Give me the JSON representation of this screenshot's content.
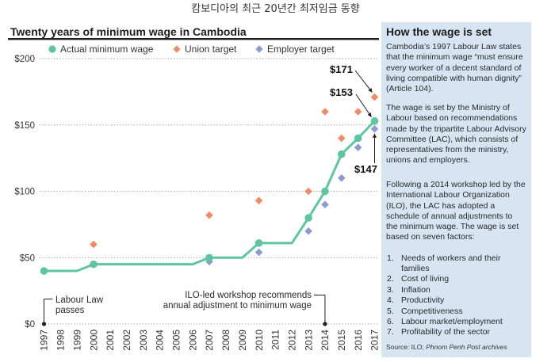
{
  "caption": "캄보디아의 최근 20년간 최저임금 동향",
  "colors": {
    "panel_bg": "#d6e5f1",
    "ink": "#1e1e1e",
    "grid": "#9a9a9a"
  },
  "chart_data": {
    "type": "line",
    "title": "Twenty years of minimum wage in Cambodia",
    "xlabel": "",
    "ylabel": "",
    "x": [
      1997,
      1998,
      1999,
      2000,
      2001,
      2002,
      2003,
      2004,
      2005,
      2006,
      2007,
      2008,
      2009,
      2010,
      2011,
      2012,
      2013,
      2014,
      2015,
      2016,
      2017
    ],
    "x_tick_labels": [
      "1997",
      "1998",
      "1999",
      "2000",
      "2001",
      "2002",
      "2003",
      "2004",
      "2005",
      "2006",
      "2007",
      "2008",
      "2009",
      "2010",
      "2011",
      "2012",
      "2013",
      "2014",
      "2015",
      "2016",
      "2017"
    ],
    "ylim": [
      0,
      200
    ],
    "y_ticks": [
      0,
      50,
      100,
      150,
      200
    ],
    "y_tick_labels": [
      "$0",
      "$50",
      "$100",
      "$150",
      "$200"
    ],
    "grid": true,
    "legend": {
      "position": "top"
    },
    "series": [
      {
        "name": "Actual minimum wage",
        "marker": "circle",
        "color": "#5dc6a1",
        "values": [
          40,
          40,
          40,
          45,
          45,
          45,
          45,
          45,
          45,
          45,
          50,
          50,
          50,
          61,
          61,
          61,
          80,
          100,
          128,
          140,
          153
        ],
        "marked_years": [
          1997,
          2000,
          2007,
          2010,
          2013,
          2014,
          2015,
          2016,
          2017
        ]
      },
      {
        "name": "Union target",
        "marker": "diamond",
        "color": "#f08c63",
        "points": [
          {
            "x": 2000,
            "y": 60
          },
          {
            "x": 2007,
            "y": 82
          },
          {
            "x": 2010,
            "y": 93
          },
          {
            "x": 2013,
            "y": 100
          },
          {
            "x": 2014,
            "y": 160
          },
          {
            "x": 2015,
            "y": 140
          },
          {
            "x": 2016,
            "y": 160
          },
          {
            "x": 2017,
            "y": 171
          }
        ]
      },
      {
        "name": "Employer target",
        "marker": "diamond",
        "color": "#8c9ad1",
        "points": [
          {
            "x": 2007,
            "y": 47
          },
          {
            "x": 2010,
            "y": 54
          },
          {
            "x": 2013,
            "y": 70
          },
          {
            "x": 2014,
            "y": 90
          },
          {
            "x": 2015,
            "y": 110
          },
          {
            "x": 2016,
            "y": 133
          },
          {
            "x": 2017,
            "y": 147
          }
        ]
      }
    ],
    "value_labels": [
      {
        "text": "$171",
        "year": 2017,
        "value": 171
      },
      {
        "text": "$153",
        "year": 2017,
        "value": 153
      },
      {
        "text": "$147",
        "year": 2017,
        "value": 147
      }
    ],
    "event_notes": [
      {
        "year": 1997,
        "lines": [
          "Labour Law",
          "passes"
        ]
      },
      {
        "year": 2014,
        "lines": [
          "ILO-led workshop recommends",
          "annual adjustment to minimum wage"
        ]
      }
    ]
  },
  "info_panel": {
    "title": "How the wage is set",
    "paragraphs": [
      [
        "Cambodia’s 1997 Labour Law states",
        "that the minimum wage “must ensure",
        "every worker of a decent standard of",
        "living compatible with human dignity”",
        "(Article 104)."
      ],
      [
        "The wage is set by the Ministry of",
        "Labour based on recommendations",
        "made by the tripartite Labour Advisory",
        "Committee (LAC), which consists of",
        "representatives from the ministry,",
        "unions and employers."
      ],
      [
        "Following a 2014 workshop led by the",
        "International Labour Organization",
        "(ILO), the LAC has adopted a",
        "schedule of annual adjustments to",
        "the minimum wage. The wage is set",
        "based on seven factors:"
      ]
    ],
    "factors": [
      {
        "number": "1.",
        "lines": [
          "Needs of workers and their",
          "families"
        ]
      },
      {
        "number": "2.",
        "lines": [
          "Cost of living"
        ]
      },
      {
        "number": "3.",
        "lines": [
          "Inflation"
        ]
      },
      {
        "number": "4.",
        "lines": [
          "Productivity"
        ]
      },
      {
        "number": "5.",
        "lines": [
          "Competitiveness"
        ]
      },
      {
        "number": "6.",
        "lines": [
          "Labour market/employment"
        ]
      },
      {
        "number": "7.",
        "lines": [
          "Profitability of the sector"
        ]
      }
    ],
    "source": {
      "label": "Source: ILO;",
      "publication": "Phnom Penh Post archives"
    }
  }
}
